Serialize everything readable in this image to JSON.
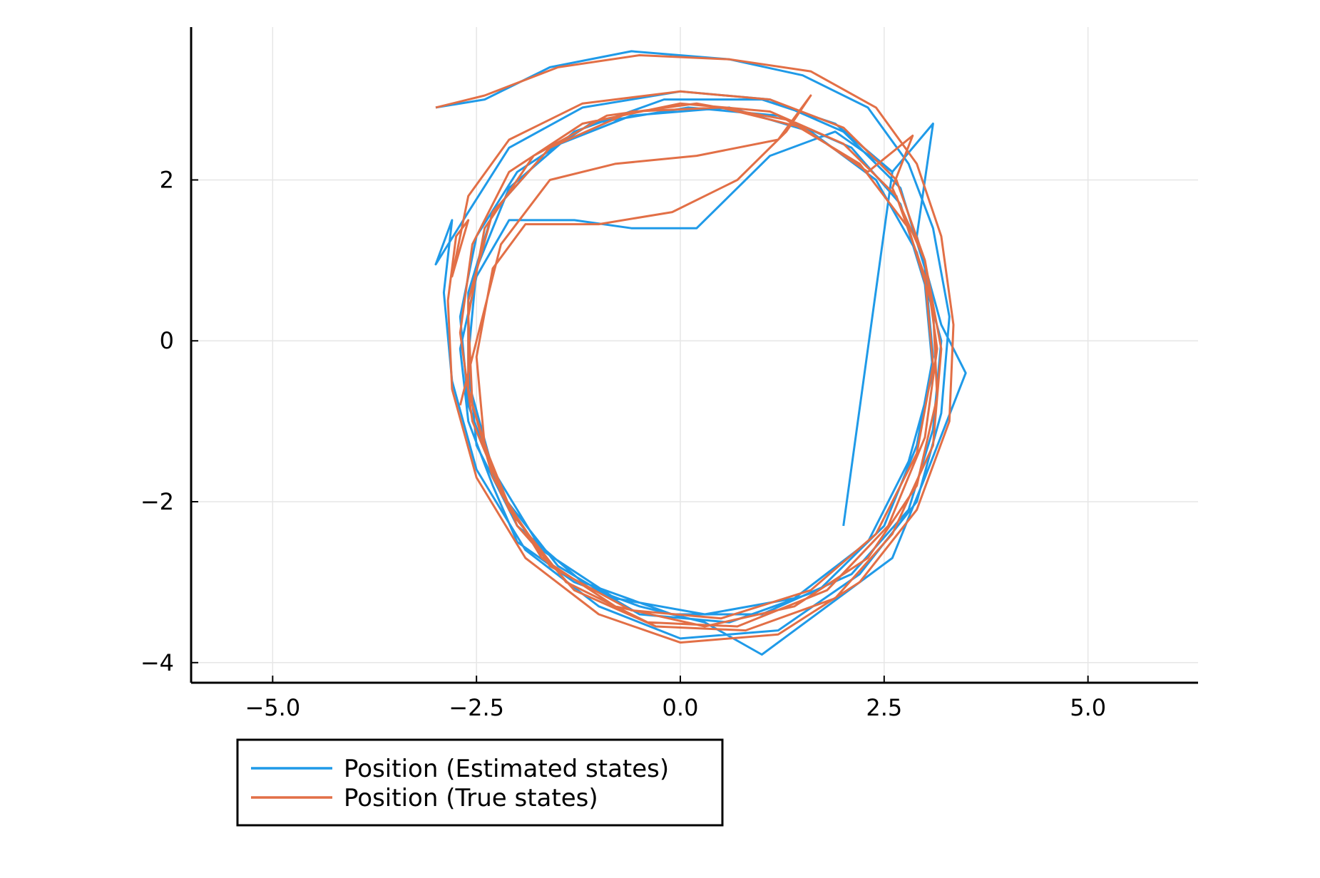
{
  "chart_data": {
    "type": "line",
    "title": "",
    "xlabel": "",
    "ylabel": "",
    "xlim": [
      -6.0,
      6.35
    ],
    "ylim": [
      -4.25,
      3.9
    ],
    "grid": true,
    "aspect": "equal",
    "legend_position": "bottom-left, outside the plot area",
    "x_ticks": [
      -5.0,
      -2.5,
      0.0,
      2.5,
      5.0
    ],
    "x_tick_labels": [
      "−5.0",
      "−2.5",
      "0.0",
      "2.5",
      "5.0"
    ],
    "y_ticks": [
      -4,
      -2,
      0,
      2
    ],
    "y_tick_labels": [
      "−4",
      "−2",
      "0",
      "2"
    ],
    "series": [
      {
        "name": "Position (Estimated states)",
        "color": "#1f9ae8",
        "trajectory_summary": "noisy orbit of radius about 3, centred near (0.3, -0.3), ~6 laps, starting near (-3.0, 2.9)",
        "points": [
          [
            -3.0,
            2.9
          ],
          [
            -2.4,
            3.0
          ],
          [
            -1.6,
            3.4
          ],
          [
            -0.6,
            3.6
          ],
          [
            0.6,
            3.5
          ],
          [
            1.5,
            3.3
          ],
          [
            2.3,
            2.9
          ],
          [
            2.8,
            2.2
          ],
          [
            3.1,
            1.4
          ],
          [
            3.3,
            0.3
          ],
          [
            3.2,
            -0.9
          ],
          [
            2.9,
            -2.0
          ],
          [
            2.2,
            -2.9
          ],
          [
            1.2,
            -3.6
          ],
          [
            0.0,
            -3.7
          ],
          [
            -1.0,
            -3.3
          ],
          [
            -1.9,
            -2.6
          ],
          [
            -2.5,
            -1.6
          ],
          [
            -2.8,
            -0.5
          ],
          [
            -2.9,
            0.6
          ],
          [
            -2.8,
            1.5
          ],
          [
            -3.0,
            0.95
          ],
          [
            -2.6,
            1.6
          ],
          [
            -2.1,
            2.4
          ],
          [
            -1.2,
            2.9
          ],
          [
            0.0,
            3.1
          ],
          [
            1.1,
            3.0
          ],
          [
            2.0,
            2.6
          ],
          [
            2.7,
            1.9
          ],
          [
            3.0,
            0.9
          ],
          [
            3.1,
            -0.2
          ],
          [
            2.9,
            -1.3
          ],
          [
            2.5,
            -2.3
          ],
          [
            1.7,
            -3.1
          ],
          [
            0.6,
            -3.5
          ],
          [
            -0.5,
            -3.4
          ],
          [
            -1.5,
            -2.8
          ],
          [
            -2.2,
            -1.9
          ],
          [
            -2.6,
            -0.8
          ],
          [
            -2.7,
            0.3
          ],
          [
            -2.5,
            1.3
          ],
          [
            -2.0,
            2.1
          ],
          [
            -1.1,
            2.7
          ],
          [
            0.1,
            2.9
          ],
          [
            1.2,
            2.8
          ],
          [
            2.1,
            2.4
          ],
          [
            2.7,
            1.7
          ],
          [
            3.0,
            0.7
          ],
          [
            3.1,
            -0.4
          ],
          [
            2.8,
            -1.5
          ],
          [
            2.3,
            -2.5
          ],
          [
            1.4,
            -3.2
          ],
          [
            0.3,
            -3.4
          ],
          [
            -0.8,
            -3.2
          ],
          [
            -1.7,
            -2.6
          ],
          [
            -2.3,
            -1.6
          ],
          [
            -2.6,
            -0.5
          ],
          [
            -2.6,
            0.6
          ],
          [
            -2.3,
            1.6
          ],
          [
            -1.6,
            2.4
          ],
          [
            -0.6,
            2.8
          ],
          [
            0.6,
            2.9
          ],
          [
            1.6,
            2.6
          ],
          [
            2.4,
            2.0
          ],
          [
            2.9,
            1.1
          ],
          [
            3.2,
            0.0
          ],
          [
            3.1,
            -1.1
          ],
          [
            2.8,
            -2.1
          ],
          [
            2.1,
            -2.9
          ],
          [
            1.0,
            -3.4
          ],
          [
            -0.1,
            -3.4
          ],
          [
            -1.2,
            -3.0
          ],
          [
            -2.0,
            -2.3
          ],
          [
            -2.5,
            -1.3
          ],
          [
            -2.6,
            -0.2
          ],
          [
            -2.5,
            0.9
          ],
          [
            -2.1,
            1.9
          ],
          [
            -1.3,
            2.6
          ],
          [
            -0.2,
            3.0
          ],
          [
            1.0,
            3.0
          ],
          [
            1.9,
            2.7
          ],
          [
            2.6,
            2.1
          ],
          [
            3.1,
            2.7
          ],
          [
            2.9,
            1.3
          ],
          [
            3.2,
            0.2
          ],
          [
            3.5,
            -0.4
          ],
          [
            3.0,
            -1.7
          ],
          [
            2.6,
            -2.7
          ],
          [
            1.8,
            -3.3
          ],
          [
            1.0,
            -3.9
          ],
          [
            0.3,
            -3.5
          ],
          [
            -0.5,
            -3.3
          ],
          [
            -1.3,
            -3.0
          ],
          [
            -2.0,
            -2.5
          ],
          [
            -2.3,
            -1.8
          ],
          [
            -2.6,
            -1.0
          ],
          [
            -2.7,
            -0.1
          ],
          [
            -2.5,
            0.8
          ],
          [
            -2.1,
            1.5
          ],
          [
            -1.3,
            1.5
          ],
          [
            -0.6,
            1.4
          ],
          [
            0.2,
            1.4
          ],
          [
            0.6,
            1.8
          ],
          [
            1.1,
            2.3
          ],
          [
            1.9,
            2.6
          ],
          [
            2.6,
            2.1
          ],
          [
            2.0,
            -2.3
          ]
        ]
      },
      {
        "name": "Position (True states)",
        "color": "#e26f46",
        "trajectory_summary": "smooth orbit of radius about 3, centred near (0.3, -0.3), ~6 laps, starting near (-3.0, 2.9)",
        "points": [
          [
            -3.0,
            2.9
          ],
          [
            -2.4,
            3.05
          ],
          [
            -1.5,
            3.4
          ],
          [
            -0.5,
            3.55
          ],
          [
            0.6,
            3.5
          ],
          [
            1.6,
            3.35
          ],
          [
            2.4,
            2.9
          ],
          [
            2.9,
            2.2
          ],
          [
            3.2,
            1.3
          ],
          [
            3.35,
            0.2
          ],
          [
            3.3,
            -1.0
          ],
          [
            2.9,
            -2.1
          ],
          [
            2.2,
            -3.0
          ],
          [
            1.2,
            -3.65
          ],
          [
            0.0,
            -3.75
          ],
          [
            -1.0,
            -3.4
          ],
          [
            -1.9,
            -2.7
          ],
          [
            -2.5,
            -1.7
          ],
          [
            -2.8,
            -0.6
          ],
          [
            -2.85,
            0.5
          ],
          [
            -2.75,
            1.3
          ],
          [
            -2.6,
            1.5
          ],
          [
            -2.8,
            0.8
          ],
          [
            -2.6,
            1.8
          ],
          [
            -2.1,
            2.5
          ],
          [
            -1.2,
            2.95
          ],
          [
            0.0,
            3.1
          ],
          [
            1.1,
            3.0
          ],
          [
            2.0,
            2.65
          ],
          [
            2.65,
            2.0
          ],
          [
            3.0,
            1.0
          ],
          [
            3.15,
            -0.1
          ],
          [
            3.0,
            -1.2
          ],
          [
            2.55,
            -2.3
          ],
          [
            1.8,
            -3.1
          ],
          [
            0.7,
            -3.55
          ],
          [
            -0.4,
            -3.5
          ],
          [
            -1.4,
            -3.0
          ],
          [
            -2.1,
            -2.1
          ],
          [
            -2.55,
            -1.0
          ],
          [
            -2.7,
            0.1
          ],
          [
            -2.55,
            1.2
          ],
          [
            -2.1,
            2.1
          ],
          [
            -1.2,
            2.7
          ],
          [
            0.0,
            2.95
          ],
          [
            1.1,
            2.85
          ],
          [
            2.0,
            2.45
          ],
          [
            2.65,
            1.8
          ],
          [
            3.0,
            0.8
          ],
          [
            3.1,
            -0.3
          ],
          [
            2.9,
            -1.4
          ],
          [
            2.4,
            -2.4
          ],
          [
            1.6,
            -3.1
          ],
          [
            0.5,
            -3.45
          ],
          [
            -0.6,
            -3.35
          ],
          [
            -1.6,
            -2.8
          ],
          [
            -2.2,
            -1.9
          ],
          [
            -2.55,
            -0.8
          ],
          [
            -2.6,
            0.3
          ],
          [
            -2.4,
            1.4
          ],
          [
            -1.8,
            2.3
          ],
          [
            -0.9,
            2.8
          ],
          [
            0.2,
            2.95
          ],
          [
            1.3,
            2.75
          ],
          [
            2.2,
            2.2
          ],
          [
            2.8,
            1.4
          ],
          [
            3.1,
            0.4
          ],
          [
            3.15,
            -0.7
          ],
          [
            2.9,
            -1.8
          ],
          [
            2.3,
            -2.7
          ],
          [
            1.4,
            -3.3
          ],
          [
            0.3,
            -3.55
          ],
          [
            -0.8,
            -3.3
          ],
          [
            -1.7,
            -2.7
          ],
          [
            -2.3,
            -1.7
          ],
          [
            -2.6,
            -0.6
          ],
          [
            -2.6,
            0.5
          ],
          [
            -2.3,
            1.6
          ],
          [
            -1.6,
            2.4
          ],
          [
            -0.6,
            2.85
          ],
          [
            0.5,
            2.9
          ],
          [
            1.5,
            2.65
          ],
          [
            2.3,
            2.1
          ],
          [
            2.85,
            2.55
          ],
          [
            2.6,
            1.9
          ],
          [
            3.0,
            1.0
          ],
          [
            3.2,
            -0.1
          ],
          [
            3.1,
            -1.3
          ],
          [
            2.6,
            -2.4
          ],
          [
            1.9,
            -3.2
          ],
          [
            0.8,
            -3.6
          ],
          [
            -0.3,
            -3.55
          ],
          [
            -1.3,
            -3.1
          ],
          [
            -2.0,
            -2.3
          ],
          [
            -2.4,
            -1.3
          ],
          [
            -2.5,
            -0.2
          ],
          [
            -2.3,
            0.9
          ],
          [
            -1.9,
            1.45
          ],
          [
            -1.0,
            1.45
          ],
          [
            -0.1,
            1.6
          ],
          [
            0.7,
            2.0
          ],
          [
            1.3,
            2.6
          ],
          [
            1.6,
            3.05
          ],
          [
            1.2,
            2.5
          ],
          [
            0.2,
            2.3
          ],
          [
            -0.8,
            2.2
          ],
          [
            -1.6,
            2.0
          ],
          [
            -2.2,
            1.2
          ],
          [
            -2.7,
            -0.8
          ]
        ]
      }
    ]
  },
  "legend": {
    "items": [
      {
        "label": "Position (Estimated states)",
        "color": "#1f9ae8"
      },
      {
        "label": "Position (True states)",
        "color": "#e26f46"
      }
    ]
  }
}
